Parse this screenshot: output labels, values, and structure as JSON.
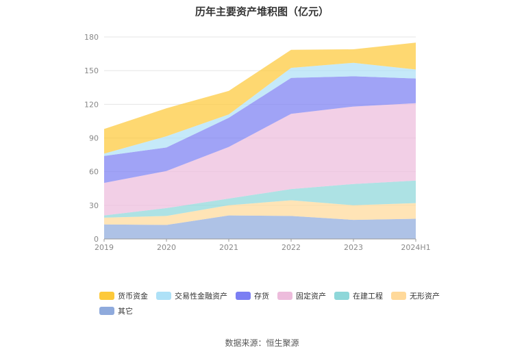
{
  "chart_data": {
    "type": "area",
    "stacked": true,
    "title": "历年主要资产堆积图（亿元）",
    "categories": [
      "2019",
      "2020",
      "2021",
      "2022",
      "2023",
      "2024H1"
    ],
    "ylim": [
      0,
      180
    ],
    "yticks": [
      0,
      30,
      60,
      90,
      120,
      150,
      180
    ],
    "grid": true,
    "legend_position": "bottom",
    "series": [
      {
        "name": "其它",
        "color": "#8FAADC",
        "values": [
          13,
          12.5,
          21,
          20.5,
          17,
          18
        ]
      },
      {
        "name": "无形资产",
        "color": "#FFD99A",
        "values": [
          6,
          8,
          9,
          14,
          13,
          14
        ]
      },
      {
        "name": "在建工程",
        "color": "#8ED7D9",
        "values": [
          2,
          7,
          6,
          10,
          19,
          20
        ]
      },
      {
        "name": "固定资产",
        "color": "#EDBCDC",
        "values": [
          29,
          33,
          46,
          67,
          69,
          69
        ]
      },
      {
        "name": "存货",
        "color": "#7B7FF3",
        "values": [
          24,
          21,
          26,
          32,
          27,
          22
        ]
      },
      {
        "name": "交易性金融资产",
        "color": "#AEE1F7",
        "values": [
          2,
          10,
          3,
          9,
          12,
          8
        ]
      },
      {
        "name": "货币资金",
        "color": "#FDC93A",
        "values": [
          22,
          25,
          21,
          16,
          12,
          24
        ]
      }
    ],
    "legend_order": [
      "货币资金",
      "交易性金融资产",
      "存货",
      "固定资产",
      "在建工程",
      "无形资产",
      "其它"
    ],
    "source": "数据来源：恒生聚源"
  }
}
